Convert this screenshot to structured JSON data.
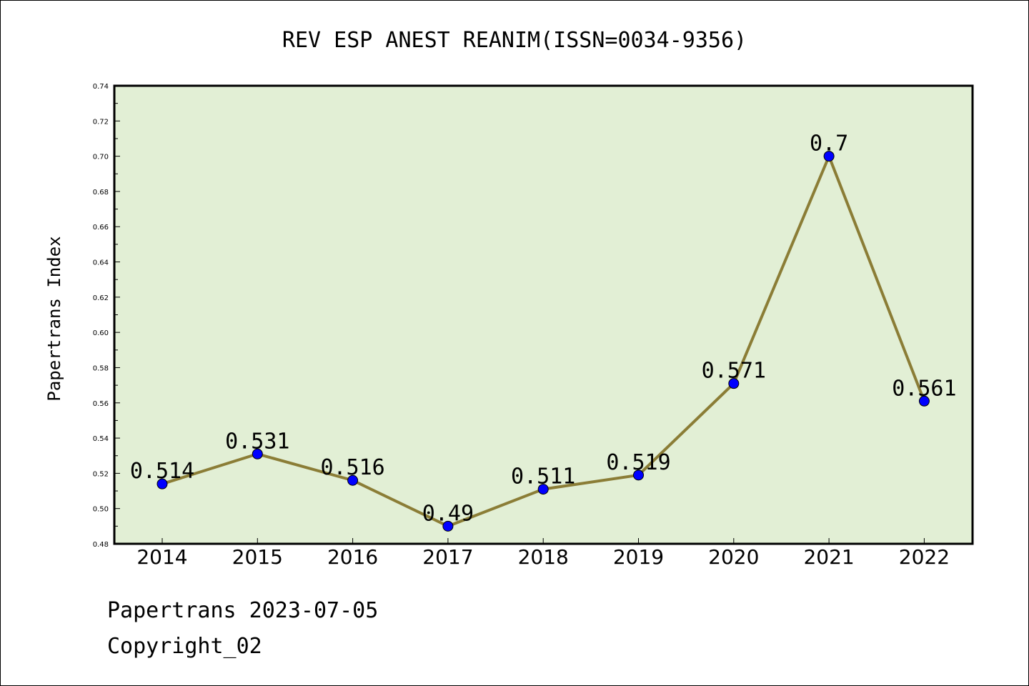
{
  "chart_data": {
    "type": "line",
    "title": "REV ESP ANEST REANIM(ISSN=0034-9356)",
    "xlabel": "",
    "ylabel": "Papertrans Index",
    "categories": [
      "2014",
      "2015",
      "2016",
      "2017",
      "2018",
      "2019",
      "2020",
      "2021",
      "2022"
    ],
    "values": [
      0.514,
      0.531,
      0.516,
      0.49,
      0.511,
      0.519,
      0.571,
      0.7,
      0.561
    ],
    "data_labels": [
      "0.514",
      "0.531",
      "0.516",
      "0.49",
      "0.511",
      "0.519",
      "0.571",
      "0.7",
      "0.561"
    ],
    "ylim": [
      0.48,
      0.74
    ],
    "yticks": [
      "0.48",
      "0.50",
      "0.52",
      "0.54",
      "0.56",
      "0.58",
      "0.60",
      "0.62",
      "0.64",
      "0.66",
      "0.68",
      "0.70",
      "0.72",
      "0.74"
    ],
    "grid": false,
    "colors": {
      "plot_background": "#e2efd5",
      "line": "#8b7d36",
      "marker": "#0000ff"
    }
  },
  "footer": {
    "line1": "Papertrans 2023-07-05",
    "line2": "Copyright_02"
  }
}
